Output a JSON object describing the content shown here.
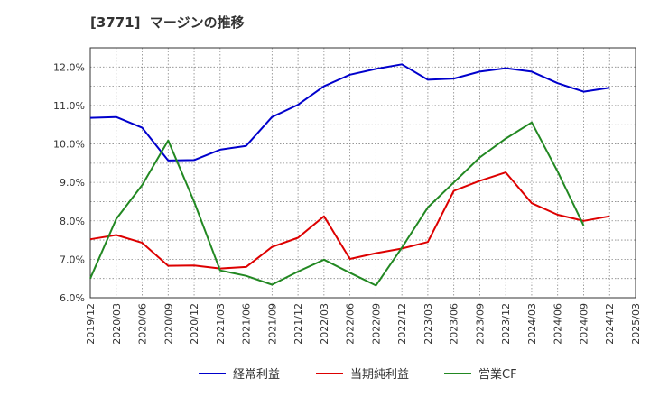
{
  "title": "[3771]  マージンの推移",
  "chart_data": {
    "type": "line",
    "title": "[3771]  マージンの推移",
    "xlabel": "",
    "ylabel": "",
    "ylim": [
      6.0,
      12.5
    ],
    "y_ticks": [
      "6.0%",
      "7.0%",
      "8.0%",
      "9.0%",
      "10.0%",
      "11.0%",
      "12.0%"
    ],
    "y_tick_values": [
      6.0,
      7.0,
      8.0,
      9.0,
      10.0,
      11.0,
      12.0
    ],
    "grid": true,
    "legend_position": "bottom",
    "categories": [
      "2019/12",
      "2020/03",
      "2020/06",
      "2020/09",
      "2020/12",
      "2021/03",
      "2021/06",
      "2021/09",
      "2021/12",
      "2022/03",
      "2022/06",
      "2022/09",
      "2022/12",
      "2023/03",
      "2023/06",
      "2023/09",
      "2023/12",
      "2024/03",
      "2024/06",
      "2024/09",
      "2024/12",
      "2025/03"
    ],
    "series": [
      {
        "name": "経常利益",
        "color": "#0000cc",
        "values": [
          10.68,
          10.7,
          10.42,
          9.57,
          9.58,
          9.85,
          9.95,
          10.7,
          11.02,
          11.5,
          11.8,
          11.95,
          12.07,
          11.67,
          11.7,
          11.88,
          11.97,
          11.88,
          11.58,
          11.36,
          11.46,
          null
        ]
      },
      {
        "name": "当期純利益",
        "color": "#dd0000",
        "values": [
          7.52,
          7.63,
          7.43,
          6.83,
          6.84,
          6.76,
          6.8,
          7.32,
          7.56,
          8.12,
          7.01,
          7.16,
          7.28,
          7.45,
          8.78,
          9.04,
          9.26,
          8.46,
          8.16,
          8.0,
          8.12,
          null
        ]
      },
      {
        "name": "営業CF",
        "color": "#228822",
        "values": [
          6.5,
          8.05,
          8.93,
          10.09,
          8.5,
          6.71,
          6.57,
          6.34,
          6.68,
          6.99,
          6.65,
          6.32,
          7.3,
          8.35,
          9.0,
          9.65,
          10.14,
          10.56,
          9.28,
          7.88,
          null,
          null
        ]
      }
    ]
  }
}
